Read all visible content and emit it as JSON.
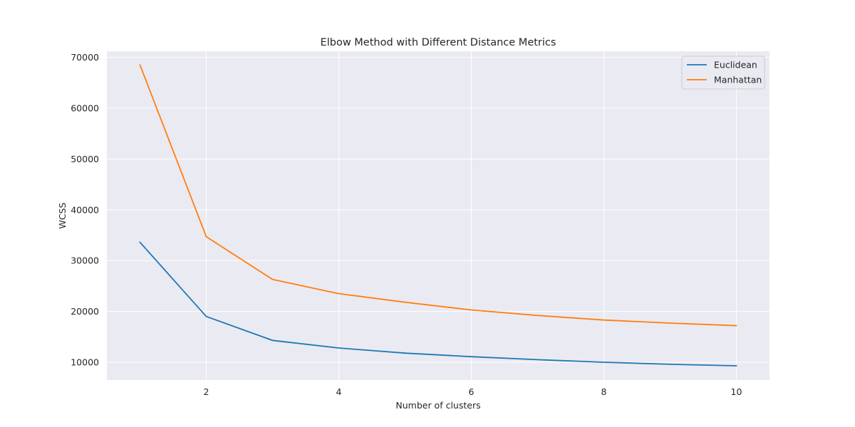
{
  "chart_data": {
    "type": "line",
    "title": "Elbow Method with Different Distance Metrics",
    "xlabel": "Number of clusters",
    "ylabel": "WCSS",
    "x": [
      1,
      2,
      3,
      4,
      5,
      6,
      7,
      8,
      9,
      10
    ],
    "xlim": [
      0.5,
      10.5
    ],
    "ylim": [
      6500,
      71200
    ],
    "x_ticks": [
      2,
      4,
      6,
      8,
      10
    ],
    "y_ticks": [
      10000,
      20000,
      30000,
      40000,
      50000,
      60000,
      70000
    ],
    "grid": true,
    "background": "#eaeaf2",
    "legend_position": "top-right",
    "series": [
      {
        "name": "Euclidean",
        "color": "#1f77b4",
        "values": [
          33600,
          19000,
          14300,
          12800,
          11800,
          11100,
          10500,
          10000,
          9600,
          9300
        ]
      },
      {
        "name": "Manhattan",
        "color": "#ff7f0e",
        "values": [
          68500,
          34700,
          26300,
          23500,
          21800,
          20300,
          19200,
          18300,
          17700,
          17200
        ]
      }
    ]
  }
}
